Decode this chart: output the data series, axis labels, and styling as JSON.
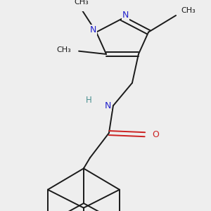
{
  "bg_color": "#eeeeee",
  "bond_color": "#1a1a1a",
  "N_color": "#2222cc",
  "O_color": "#cc2222",
  "H_color": "#4a9090",
  "line_width": 1.4,
  "figsize": [
    3.0,
    3.0
  ],
  "dpi": 100,
  "xlim": [
    -2.5,
    2.5
  ],
  "ylim": [
    -3.8,
    2.8
  ]
}
